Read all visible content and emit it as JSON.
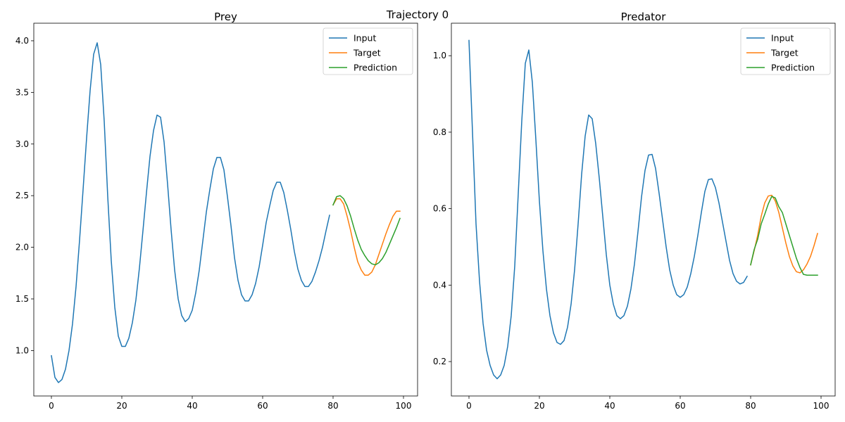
{
  "figure": {
    "suptitle": "Trajectory 0"
  },
  "chart_data": [
    {
      "type": "line",
      "title": "Prey",
      "xlabel": "",
      "ylabel": "",
      "xlim": [
        -5,
        104
      ],
      "ylim": [
        0.56,
        4.17
      ],
      "xticks": [
        0,
        20,
        40,
        60,
        80,
        100
      ],
      "yticks": [
        1.0,
        1.5,
        2.0,
        2.5,
        3.0,
        3.5,
        4.0
      ],
      "ytick_labels": [
        "1.0",
        "1.5",
        "2.0",
        "2.5",
        "3.0",
        "3.5",
        "4.0"
      ],
      "grid": false,
      "legend": "top-right",
      "series": [
        {
          "name": "Input",
          "color": "#1f77b4",
          "x0": 0,
          "values": [
            0.95,
            0.74,
            0.69,
            0.72,
            0.82,
            1.0,
            1.26,
            1.62,
            2.07,
            2.56,
            3.06,
            3.52,
            3.87,
            3.98,
            3.77,
            3.22,
            2.49,
            1.87,
            1.42,
            1.14,
            1.04,
            1.04,
            1.12,
            1.27,
            1.49,
            1.8,
            2.16,
            2.53,
            2.88,
            3.13,
            3.28,
            3.26,
            3.02,
            2.61,
            2.17,
            1.78,
            1.5,
            1.34,
            1.28,
            1.31,
            1.39,
            1.56,
            1.78,
            2.06,
            2.34,
            2.56,
            2.76,
            2.87,
            2.87,
            2.75,
            2.49,
            2.21,
            1.9,
            1.68,
            1.54,
            1.48,
            1.48,
            1.54,
            1.65,
            1.81,
            2.02,
            2.24,
            2.4,
            2.55,
            2.63,
            2.63,
            2.53,
            2.36,
            2.17,
            1.96,
            1.79,
            1.68,
            1.62,
            1.62,
            1.67,
            1.76,
            1.87,
            2.0,
            2.16,
            2.31
          ]
        },
        {
          "name": "Target",
          "color": "#ff7f0e",
          "x0": 80,
          "values": [
            2.41,
            2.47,
            2.47,
            2.42,
            2.3,
            2.16,
            2.0,
            1.86,
            1.78,
            1.73,
            1.73,
            1.76,
            1.83,
            1.93,
            2.03,
            2.13,
            2.22,
            2.3,
            2.35,
            2.35
          ]
        },
        {
          "name": "Prediction",
          "color": "#2ca02c",
          "x0": 80,
          "values": [
            2.41,
            2.49,
            2.5,
            2.47,
            2.4,
            2.3,
            2.18,
            2.07,
            1.98,
            1.92,
            1.87,
            1.84,
            1.83,
            1.85,
            1.89,
            1.95,
            2.03,
            2.11,
            2.19,
            2.28
          ]
        }
      ]
    },
    {
      "type": "line",
      "title": "Predator",
      "xlabel": "",
      "ylabel": "",
      "xlim": [
        -5,
        104
      ],
      "ylim": [
        0.11,
        1.085
      ],
      "xticks": [
        0,
        20,
        40,
        60,
        80,
        100
      ],
      "yticks": [
        0.2,
        0.4,
        0.6,
        0.8,
        1.0
      ],
      "ytick_labels": [
        "0.2",
        "0.4",
        "0.6",
        "0.8",
        "1.0"
      ],
      "grid": false,
      "legend": "top-right",
      "series": [
        {
          "name": "Input",
          "color": "#1f77b4",
          "x0": 0,
          "values": [
            1.04,
            0.8,
            0.56,
            0.41,
            0.3,
            0.23,
            0.19,
            0.165,
            0.155,
            0.165,
            0.19,
            0.24,
            0.32,
            0.45,
            0.64,
            0.83,
            0.98,
            1.015,
            0.93,
            0.78,
            0.62,
            0.49,
            0.39,
            0.32,
            0.275,
            0.25,
            0.245,
            0.255,
            0.29,
            0.35,
            0.44,
            0.56,
            0.69,
            0.79,
            0.845,
            0.835,
            0.77,
            0.68,
            0.58,
            0.48,
            0.4,
            0.35,
            0.32,
            0.312,
            0.32,
            0.345,
            0.39,
            0.455,
            0.54,
            0.63,
            0.7,
            0.74,
            0.742,
            0.705,
            0.64,
            0.57,
            0.5,
            0.44,
            0.4,
            0.375,
            0.368,
            0.375,
            0.395,
            0.43,
            0.475,
            0.53,
            0.59,
            0.645,
            0.676,
            0.678,
            0.655,
            0.615,
            0.565,
            0.515,
            0.465,
            0.43,
            0.41,
            0.403,
            0.407,
            0.423
          ]
        },
        {
          "name": "Target",
          "color": "#ff7f0e",
          "x0": 80,
          "values": [
            0.453,
            0.49,
            0.53,
            0.58,
            0.615,
            0.633,
            0.635,
            0.62,
            0.59,
            0.55,
            0.51,
            0.475,
            0.45,
            0.435,
            0.432,
            0.44,
            0.455,
            0.475,
            0.503,
            0.535
          ]
        },
        {
          "name": "Prediction",
          "color": "#2ca02c",
          "x0": 80,
          "values": [
            0.453,
            0.493,
            0.52,
            0.56,
            0.585,
            0.612,
            0.632,
            0.628,
            0.605,
            0.59,
            0.56,
            0.53,
            0.5,
            0.47,
            0.446,
            0.428,
            0.426,
            0.426,
            0.426,
            0.426
          ]
        }
      ]
    }
  ]
}
